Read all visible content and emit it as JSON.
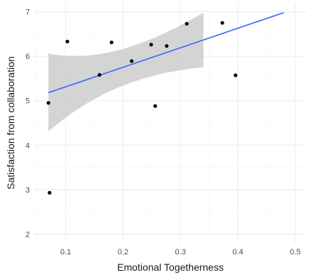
{
  "chart_data": {
    "type": "scatter",
    "title": "",
    "xlabel": "Emotional Togetherness",
    "ylabel": "Satisfaction from collaboration",
    "xlim": [
      0.045,
      0.52
    ],
    "ylim": [
      1.8,
      7.2
    ],
    "x_ticks": [
      0.1,
      0.2,
      0.3,
      0.4,
      0.5
    ],
    "x_tick_labels": [
      "0.1",
      "0.2",
      "0.3",
      "0.4",
      "0.5"
    ],
    "y_ticks": [
      2,
      3,
      4,
      5,
      6,
      7
    ],
    "y_tick_labels": [
      "2",
      "3",
      "4",
      "5",
      "6",
      "7"
    ],
    "grid": true,
    "colors": {
      "points": "#000000",
      "trend": "#3366ff",
      "band": "#cccccc"
    },
    "points": [
      {
        "x": 0.07,
        "y": 4.95
      },
      {
        "x": 0.072,
        "y": 2.93
      },
      {
        "x": 0.103,
        "y": 6.33
      },
      {
        "x": 0.159,
        "y": 5.58
      },
      {
        "x": 0.18,
        "y": 6.31
      },
      {
        "x": 0.215,
        "y": 5.89
      },
      {
        "x": 0.249,
        "y": 6.26
      },
      {
        "x": 0.256,
        "y": 4.88
      },
      {
        "x": 0.276,
        "y": 6.23
      },
      {
        "x": 0.311,
        "y": 6.73
      },
      {
        "x": 0.373,
        "y": 6.75
      },
      {
        "x": 0.396,
        "y": 5.57
      }
    ],
    "trend_line": {
      "x": [
        0.07,
        0.48
      ],
      "y": [
        5.18,
        6.98
      ]
    },
    "confidence_band": {
      "x": [
        0.07,
        0.34
      ],
      "upper": [
        6.06,
        6.98
      ],
      "lower": [
        4.31,
        5.75
      ]
    }
  }
}
